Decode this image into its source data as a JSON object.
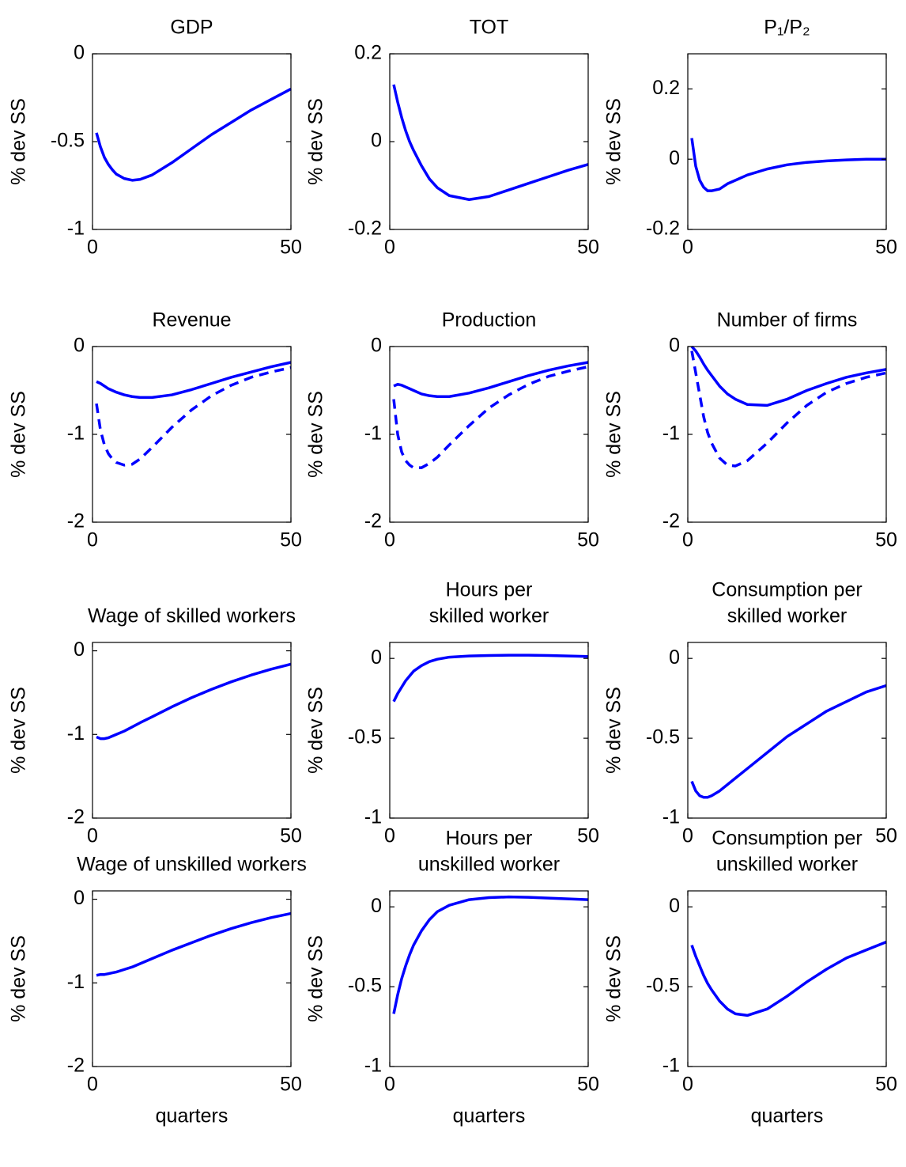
{
  "chart_data": [
    {
      "type": "line",
      "title": [
        "GDP"
      ],
      "ylabel": "% dev SS",
      "x": [
        1,
        2,
        3,
        4,
        5,
        6,
        8,
        10,
        12,
        15,
        20,
        25,
        30,
        35,
        40,
        45,
        50
      ],
      "series": [
        {
          "color": "#0000ff",
          "style": "solid",
          "values": [
            -0.45,
            -0.53,
            -0.59,
            -0.63,
            -0.66,
            -0.685,
            -0.71,
            -0.72,
            -0.715,
            -0.69,
            -0.62,
            -0.54,
            -0.46,
            -0.39,
            -0.32,
            -0.26,
            -0.2
          ]
        }
      ],
      "xlim": [
        0,
        50
      ],
      "xticks": [
        0,
        50
      ],
      "ylim": [
        -1,
        0
      ],
      "yticks": [
        -1,
        -0.5,
        0
      ]
    },
    {
      "type": "line",
      "title": [
        "TOT"
      ],
      "ylabel": "% dev SS",
      "x": [
        1,
        2,
        3,
        4,
        5,
        6,
        8,
        10,
        12,
        15,
        20,
        25,
        30,
        35,
        40,
        45,
        50
      ],
      "series": [
        {
          "color": "#0000ff",
          "style": "solid",
          "values": [
            0.13,
            0.09,
            0.055,
            0.025,
            0,
            -0.02,
            -0.055,
            -0.085,
            -0.105,
            -0.123,
            -0.132,
            -0.125,
            -0.11,
            -0.095,
            -0.08,
            -0.065,
            -0.052
          ]
        }
      ],
      "xlim": [
        0,
        50
      ],
      "xticks": [
        0,
        50
      ],
      "ylim": [
        -0.2,
        0.2
      ],
      "yticks": [
        -0.2,
        0,
        0.2
      ]
    },
    {
      "type": "line",
      "title": [
        "P₁/P₂"
      ],
      "ylabel": "% dev SS",
      "x": [
        1,
        2,
        3,
        4,
        5,
        6,
        8,
        10,
        12,
        15,
        20,
        25,
        30,
        35,
        40,
        45,
        50
      ],
      "series": [
        {
          "color": "#0000ff",
          "style": "solid",
          "values": [
            0.06,
            -0.02,
            -0.06,
            -0.08,
            -0.09,
            -0.09,
            -0.085,
            -0.07,
            -0.06,
            -0.045,
            -0.028,
            -0.016,
            -0.009,
            -0.005,
            -0.002,
            0,
            0
          ]
        }
      ],
      "xlim": [
        0,
        50
      ],
      "xticks": [
        0,
        50
      ],
      "ylim": [
        -0.2,
        0.3
      ],
      "yticks": [
        -0.2,
        0,
        0.2
      ]
    },
    {
      "type": "line",
      "title": [
        "Revenue"
      ],
      "ylabel": "% dev SS",
      "x": [
        1,
        2,
        3,
        4,
        5,
        6,
        8,
        10,
        12,
        15,
        20,
        25,
        30,
        35,
        40,
        45,
        50
      ],
      "series": [
        {
          "color": "#0000ff",
          "style": "solid",
          "values": [
            -0.4,
            -0.42,
            -0.45,
            -0.48,
            -0.5,
            -0.52,
            -0.55,
            -0.57,
            -0.58,
            -0.58,
            -0.55,
            -0.49,
            -0.42,
            -0.35,
            -0.29,
            -0.23,
            -0.18
          ]
        },
        {
          "color": "#0000ff",
          "style": "dashed",
          "values": [
            -0.65,
            -0.95,
            -1.12,
            -1.22,
            -1.28,
            -1.32,
            -1.35,
            -1.34,
            -1.28,
            -1.15,
            -0.92,
            -0.72,
            -0.56,
            -0.44,
            -0.35,
            -0.29,
            -0.24
          ]
        }
      ],
      "xlim": [
        0,
        50
      ],
      "xticks": [
        0,
        50
      ],
      "ylim": [
        -2,
        0
      ],
      "yticks": [
        -2,
        -1,
        0
      ]
    },
    {
      "type": "line",
      "title": [
        "Production"
      ],
      "ylabel": "% dev SS",
      "x": [
        1,
        2,
        3,
        4,
        5,
        6,
        8,
        10,
        12,
        15,
        20,
        25,
        30,
        35,
        40,
        45,
        50
      ],
      "series": [
        {
          "color": "#0000ff",
          "style": "solid",
          "values": [
            -0.45,
            -0.43,
            -0.44,
            -0.46,
            -0.48,
            -0.5,
            -0.54,
            -0.56,
            -0.57,
            -0.57,
            -0.53,
            -0.47,
            -0.4,
            -0.33,
            -0.27,
            -0.22,
            -0.18
          ]
        },
        {
          "color": "#0000ff",
          "style": "dashed",
          "values": [
            -0.6,
            -1.0,
            -1.2,
            -1.3,
            -1.35,
            -1.38,
            -1.38,
            -1.33,
            -1.26,
            -1.12,
            -0.9,
            -0.7,
            -0.55,
            -0.43,
            -0.34,
            -0.28,
            -0.23
          ]
        }
      ],
      "xlim": [
        0,
        50
      ],
      "xticks": [
        0,
        50
      ],
      "ylim": [
        -2,
        0
      ],
      "yticks": [
        -2,
        -1,
        0
      ]
    },
    {
      "type": "line",
      "title": [
        "Number of firms"
      ],
      "ylabel": "% dev SS",
      "x": [
        1,
        2,
        3,
        4,
        5,
        6,
        8,
        10,
        12,
        15,
        20,
        25,
        30,
        35,
        40,
        45,
        50
      ],
      "series": [
        {
          "color": "#0000ff",
          "style": "solid",
          "values": [
            0,
            -0.05,
            -0.12,
            -0.2,
            -0.27,
            -0.33,
            -0.45,
            -0.54,
            -0.6,
            -0.66,
            -0.67,
            -0.6,
            -0.5,
            -0.42,
            -0.35,
            -0.3,
            -0.26
          ]
        },
        {
          "color": "#0000ff",
          "style": "dashed",
          "values": [
            -0.05,
            -0.3,
            -0.55,
            -0.8,
            -0.98,
            -1.1,
            -1.27,
            -1.35,
            -1.36,
            -1.3,
            -1.1,
            -0.87,
            -0.67,
            -0.52,
            -0.42,
            -0.35,
            -0.3
          ]
        }
      ],
      "xlim": [
        0,
        50
      ],
      "xticks": [
        0,
        50
      ],
      "ylim": [
        -2,
        0
      ],
      "yticks": [
        -2,
        -1,
        0
      ]
    },
    {
      "type": "line",
      "title": [
        "Wage of skilled workers"
      ],
      "ylabel": "% dev SS",
      "x": [
        1,
        2,
        3,
        4,
        5,
        6,
        8,
        10,
        12,
        15,
        20,
        25,
        30,
        35,
        40,
        45,
        50
      ],
      "series": [
        {
          "color": "#0000ff",
          "style": "solid",
          "values": [
            -1.03,
            -1.05,
            -1.05,
            -1.04,
            -1.02,
            -1.0,
            -0.96,
            -0.91,
            -0.86,
            -0.79,
            -0.67,
            -0.56,
            -0.46,
            -0.37,
            -0.29,
            -0.22,
            -0.16
          ]
        }
      ],
      "xlim": [
        0,
        50
      ],
      "xticks": [
        0,
        50
      ],
      "ylim": [
        -2,
        0.1
      ],
      "yticks": [
        -2,
        -1,
        0
      ]
    },
    {
      "type": "line",
      "title": [
        "Hours per",
        "skilled worker"
      ],
      "ylabel": "% dev SS",
      "x": [
        1,
        2,
        3,
        4,
        5,
        6,
        8,
        10,
        12,
        15,
        20,
        25,
        30,
        35,
        40,
        45,
        50
      ],
      "series": [
        {
          "color": "#0000ff",
          "style": "solid",
          "values": [
            -0.27,
            -0.22,
            -0.18,
            -0.14,
            -0.11,
            -0.08,
            -0.045,
            -0.02,
            -0.005,
            0.008,
            0.015,
            0.018,
            0.02,
            0.02,
            0.018,
            0.015,
            0.012
          ]
        }
      ],
      "xlim": [
        0,
        50
      ],
      "xticks": [
        0,
        50
      ],
      "ylim": [
        -1,
        0.1
      ],
      "yticks": [
        -1,
        -0.5,
        0
      ]
    },
    {
      "type": "line",
      "title": [
        "Consumption per",
        "skilled worker"
      ],
      "ylabel": "% dev SS",
      "x": [
        1,
        2,
        3,
        4,
        5,
        6,
        8,
        10,
        12,
        15,
        20,
        25,
        30,
        35,
        40,
        45,
        50
      ],
      "series": [
        {
          "color": "#0000ff",
          "style": "solid",
          "values": [
            -0.77,
            -0.83,
            -0.86,
            -0.87,
            -0.87,
            -0.86,
            -0.83,
            -0.79,
            -0.75,
            -0.69,
            -0.59,
            -0.49,
            -0.41,
            -0.33,
            -0.27,
            -0.21,
            -0.17
          ]
        }
      ],
      "xlim": [
        0,
        50
      ],
      "xticks": [
        0,
        50
      ],
      "ylim": [
        -1,
        0.1
      ],
      "yticks": [
        -1,
        -0.5,
        0
      ]
    },
    {
      "type": "line",
      "title": [
        "Wage of unskilled workers"
      ],
      "ylabel": "% dev SS",
      "xlabel": "quarters",
      "x": [
        1,
        2,
        3,
        4,
        5,
        6,
        8,
        10,
        12,
        15,
        20,
        25,
        30,
        35,
        40,
        45,
        50
      ],
      "series": [
        {
          "color": "#0000ff",
          "style": "solid",
          "values": [
            -0.91,
            -0.9,
            -0.9,
            -0.89,
            -0.88,
            -0.87,
            -0.84,
            -0.81,
            -0.77,
            -0.71,
            -0.61,
            -0.52,
            -0.43,
            -0.35,
            -0.28,
            -0.22,
            -0.17
          ]
        }
      ],
      "xlim": [
        0,
        50
      ],
      "xticks": [
        0,
        50
      ],
      "ylim": [
        -2,
        0.1
      ],
      "yticks": [
        -2,
        -1,
        0
      ]
    },
    {
      "type": "line",
      "title": [
        "Hours per",
        "unskilled worker"
      ],
      "ylabel": "% dev SS",
      "xlabel": "quarters",
      "x": [
        1,
        2,
        3,
        4,
        5,
        6,
        8,
        10,
        12,
        15,
        20,
        25,
        30,
        35,
        40,
        45,
        50
      ],
      "series": [
        {
          "color": "#0000ff",
          "style": "solid",
          "values": [
            -0.67,
            -0.55,
            -0.45,
            -0.37,
            -0.3,
            -0.24,
            -0.15,
            -0.08,
            -0.03,
            0.01,
            0.045,
            0.058,
            0.062,
            0.06,
            0.055,
            0.05,
            0.045
          ]
        }
      ],
      "xlim": [
        0,
        50
      ],
      "xticks": [
        0,
        50
      ],
      "ylim": [
        -1,
        0.1
      ],
      "yticks": [
        -1,
        -0.5,
        0
      ]
    },
    {
      "type": "line",
      "title": [
        "Consumption per",
        "unskilled worker"
      ],
      "ylabel": "% dev SS",
      "xlabel": "quarters",
      "x": [
        1,
        2,
        3,
        4,
        5,
        6,
        8,
        10,
        12,
        15,
        20,
        25,
        30,
        35,
        40,
        45,
        50
      ],
      "series": [
        {
          "color": "#0000ff",
          "style": "solid",
          "values": [
            -0.24,
            -0.31,
            -0.37,
            -0.43,
            -0.48,
            -0.52,
            -0.59,
            -0.64,
            -0.67,
            -0.68,
            -0.64,
            -0.56,
            -0.47,
            -0.39,
            -0.32,
            -0.27,
            -0.22
          ]
        }
      ],
      "xlim": [
        0,
        50
      ],
      "xticks": [
        0,
        50
      ],
      "ylim": [
        -1,
        0.1
      ],
      "yticks": [
        -1,
        -0.5,
        0
      ]
    }
  ]
}
